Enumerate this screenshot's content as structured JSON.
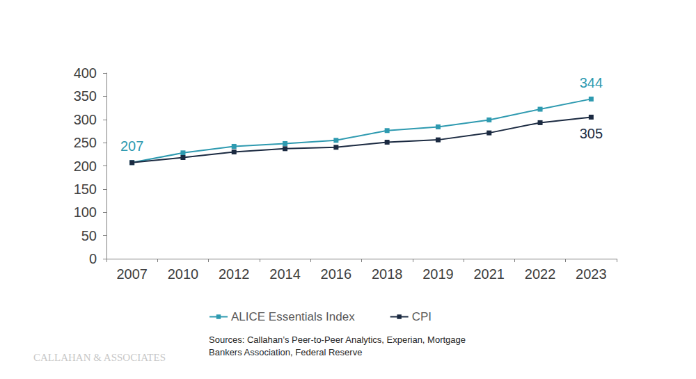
{
  "chart_data": {
    "type": "line",
    "categories": [
      "2007",
      "2010",
      "2012",
      "2014",
      "2016",
      "2018",
      "2019",
      "2021",
      "2022",
      "2023"
    ],
    "series": [
      {
        "name": "ALICE Essentials Index",
        "color": "#2e9ab0",
        "marker": "square",
        "values": [
          207,
          228,
          242,
          248,
          255,
          276,
          284,
          299,
          322,
          344
        ]
      },
      {
        "name": "CPI",
        "color": "#1b2a41",
        "marker": "square",
        "values": [
          207,
          218,
          230,
          237,
          240,
          251,
          256,
          271,
          293,
          305
        ]
      }
    ],
    "annotations": [
      {
        "text": "207",
        "series": "ALICE Essentials Index",
        "x": "2007",
        "y": 207
      },
      {
        "text": "344",
        "series": "ALICE Essentials Index",
        "x": "2023",
        "y": 344
      },
      {
        "text": "305",
        "series": "CPI",
        "x": "2023",
        "y": 305
      }
    ],
    "ylim": [
      0,
      400
    ],
    "yticks": [
      0,
      50,
      100,
      150,
      200,
      250,
      300,
      350,
      400
    ],
    "grid": false,
    "legend": "bottom",
    "source": "Sources: Callahan’s Peer-to-Peer Analytics, Experian, Mortgage\nBankers Association, Federal Reserve",
    "logo": "CALLAHAN & ASSOCIATES"
  }
}
